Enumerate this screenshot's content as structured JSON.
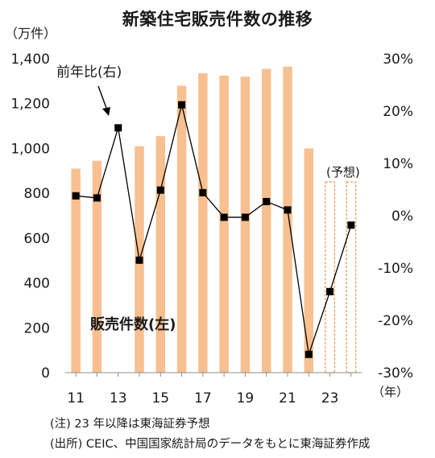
{
  "chart_data": {
    "type": "bar+line",
    "title": "新築住宅販売件数の推移",
    "left_unit": "（万件）",
    "x_unit": "（年）",
    "categories": [
      "11",
      "12",
      "13",
      "14",
      "15",
      "16",
      "17",
      "18",
      "19",
      "20",
      "21",
      "22",
      "23",
      "24"
    ],
    "x_tick_labels": [
      "11",
      "",
      "13",
      "",
      "15",
      "",
      "17",
      "",
      "19",
      "",
      "21",
      "",
      "23",
      ""
    ],
    "series": [
      {
        "name": "販売件数(左)",
        "axis": "left",
        "kind": "bar",
        "color": "#f8c090",
        "values": [
          910,
          945,
          null,
          1010,
          1055,
          1280,
          1335,
          1325,
          1320,
          1355,
          1365,
          1000,
          null,
          null
        ],
        "forecast": [
          false,
          false,
          false,
          false,
          false,
          false,
          false,
          false,
          false,
          false,
          false,
          false,
          true,
          true
        ]
      },
      {
        "name": "前年比(右)",
        "axis": "right",
        "kind": "line",
        "color": "#000000",
        "values": [
          3.8,
          3.4,
          16.8,
          -8.5,
          4.9,
          21.2,
          4.4,
          -0.3,
          -0.3,
          2.7,
          1.1,
          -26.5,
          -14.5,
          -1.8
        ]
      }
    ],
    "left_axis": {
      "range": [
        0,
        1400
      ],
      "ticks": [
        "0",
        "200",
        "400",
        "600",
        "800",
        "1,000",
        "1,200",
        "1,400"
      ]
    },
    "right_axis": {
      "range": [
        -30,
        30
      ],
      "ticks": [
        "-30%",
        "-20%",
        "-10%",
        "0%",
        "10%",
        "20%",
        "30%"
      ]
    },
    "annotations": {
      "line_label": "前年比(右)",
      "bar_label": "販売件数(左)",
      "forecast_label": "(予想)"
    },
    "legend": "none",
    "grid": false
  },
  "notes": {
    "note1": "(注) 23 年以降は東海証券予想",
    "note2": "(出所) CEIC、中国国家統計局のデータをもとに東海証券作成"
  }
}
